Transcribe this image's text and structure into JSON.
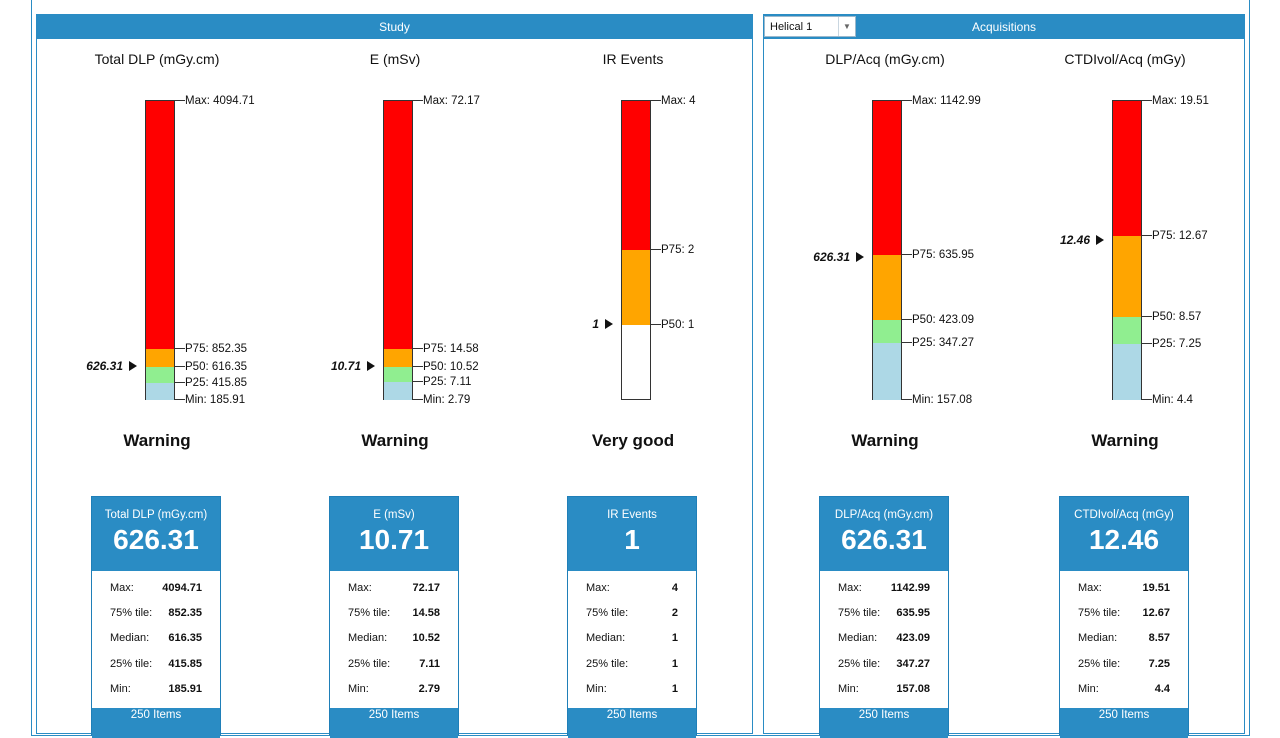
{
  "panels": {
    "study": {
      "header": "Study"
    },
    "acquisitions": {
      "header": "Acquisitions",
      "dropdown_value": "Helical 1"
    }
  },
  "colors": {
    "accent": "#2a8cc4",
    "red": "#ff0000",
    "orange": "#ffa500",
    "green": "#90ee90",
    "lightblue": "#add8e6"
  },
  "metrics": [
    {
      "id": "total-dlp",
      "title": "Total DLP (mGy.cm)",
      "status": "Warning",
      "current": "626.31",
      "current_num": 626.31,
      "labels": {
        "max": "Max: 4094.71",
        "p75": "P75: 852.35",
        "p50": "P50: 616.35",
        "p25": "P25: 415.85",
        "min": "Min: 185.91"
      },
      "card": {
        "title": "Total DLP (mGy.cm)",
        "value": "626.31",
        "rows": [
          {
            "label": "Max:",
            "value": "4094.71"
          },
          {
            "label": "75% tile:",
            "value": "852.35"
          },
          {
            "label": "Median:",
            "value": "616.35"
          },
          {
            "label": "25% tile:",
            "value": "415.85"
          },
          {
            "label": "Min:",
            "value": "185.91"
          }
        ],
        "footer": "250 Items"
      }
    },
    {
      "id": "effective-dose",
      "title": "E (mSv)",
      "status": "Warning",
      "current": "10.71",
      "current_num": 10.71,
      "labels": {
        "max": "Max: 72.17",
        "p75": "P75: 14.58",
        "p50": "P50: 10.52",
        "p25": "P25: 7.11",
        "min": "Min: 2.79"
      },
      "card": {
        "title": "E (mSv)",
        "value": "10.71",
        "rows": [
          {
            "label": "Max:",
            "value": "72.17"
          },
          {
            "label": "75% tile:",
            "value": "14.58"
          },
          {
            "label": "Median:",
            "value": "10.52"
          },
          {
            "label": "25% tile:",
            "value": "7.11"
          },
          {
            "label": "Min:",
            "value": "2.79"
          }
        ],
        "footer": "250 Items"
      }
    },
    {
      "id": "ir-events",
      "title": "IR Events",
      "status": "Very good",
      "current": "1",
      "current_num": 1,
      "labels": {
        "max": "Max: 4",
        "p75": "P75: 2",
        "p50": "P50: 1"
      },
      "card": {
        "title": "IR Events",
        "value": "1",
        "rows": [
          {
            "label": "Max:",
            "value": "4"
          },
          {
            "label": "75% tile:",
            "value": "2"
          },
          {
            "label": "Median:",
            "value": "1"
          },
          {
            "label": "25% tile:",
            "value": "1"
          },
          {
            "label": "Min:",
            "value": "1"
          }
        ],
        "footer": "250 Items"
      }
    },
    {
      "id": "dlp-acq",
      "title": "DLP/Acq (mGy.cm)",
      "status": "Warning",
      "current": "626.31",
      "current_num": 626.31,
      "labels": {
        "max": "Max: 1142.99",
        "p75": "P75: 635.95",
        "p50": "P50: 423.09",
        "p25": "P25: 347.27",
        "min": "Min: 157.08"
      },
      "card": {
        "title": "DLP/Acq (mGy.cm)",
        "value": "626.31",
        "rows": [
          {
            "label": "Max:",
            "value": "1142.99"
          },
          {
            "label": "75% tile:",
            "value": "635.95"
          },
          {
            "label": "Median:",
            "value": "423.09"
          },
          {
            "label": "25% tile:",
            "value": "347.27"
          },
          {
            "label": "Min:",
            "value": "157.08"
          }
        ],
        "footer": "250 Items"
      }
    },
    {
      "id": "ctdivol-acq",
      "title": "CTDIvol/Acq (mGy)",
      "status": "Warning",
      "current": "12.46",
      "current_num": 12.46,
      "labels": {
        "max": "Max: 19.51",
        "p75": "P75: 12.67",
        "p50": "P50: 8.57",
        "p25": "P25: 7.25",
        "min": "Min: 4.4"
      },
      "card": {
        "title": "CTDIvol/Acq (mGy)",
        "value": "12.46",
        "rows": [
          {
            "label": "Max:",
            "value": "19.51"
          },
          {
            "label": "75% tile:",
            "value": "12.67"
          },
          {
            "label": "Median:",
            "value": "8.57"
          },
          {
            "label": "25% tile:",
            "value": "7.25"
          },
          {
            "label": "Min:",
            "value": "4.4"
          }
        ],
        "footer": "250 Items"
      }
    }
  ]
}
